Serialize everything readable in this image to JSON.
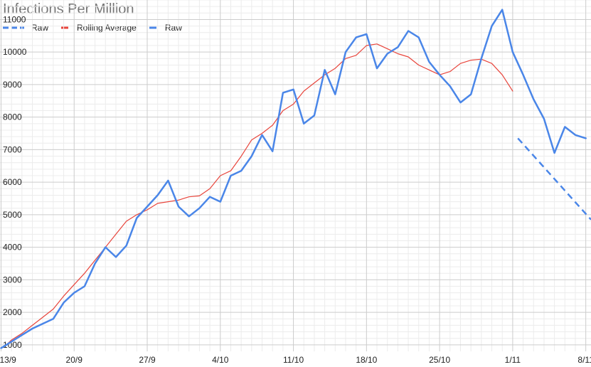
{
  "chart_data": {
    "type": "line",
    "title": "Infections Per Million",
    "xlabel": "",
    "ylabel": "",
    "x_ticks": [
      "13/9",
      "20/9",
      "27/9",
      "4/10",
      "11/10",
      "18/10",
      "25/10",
      "1/11",
      "8/11"
    ],
    "y_ticks": [
      1000,
      2000,
      3000,
      4000,
      5000,
      6000,
      7000,
      8000,
      9000,
      10000,
      11000
    ],
    "xlim": [
      12.9,
      69.5
    ],
    "ylim": [
      800,
      11600
    ],
    "grid": true,
    "legend_position": "top-left",
    "series": [
      {
        "name": "Raw",
        "style": "dashed",
        "color": "#4a86e8",
        "x": [
          62.5,
          69.5
        ],
        "y": [
          7350,
          4850
        ]
      },
      {
        "name": "Rolling Average",
        "style": "solid-thin",
        "color": "#e8453c",
        "x": [
          13.5,
          14,
          15,
          16,
          17,
          18,
          19,
          20,
          21,
          22,
          23,
          24,
          25,
          26,
          27,
          28,
          29,
          30,
          31,
          32,
          33,
          34,
          35,
          36,
          37,
          38,
          39,
          40,
          41,
          42,
          43,
          44,
          45,
          46,
          47,
          48,
          49,
          50,
          51,
          52,
          53,
          54,
          55,
          56,
          57,
          58,
          59,
          60,
          61,
          62
        ],
        "y": [
          1000,
          1150,
          1350,
          1600,
          1850,
          2100,
          2500,
          2850,
          3200,
          3600,
          4000,
          4400,
          4800,
          5000,
          5150,
          5350,
          5400,
          5450,
          5550,
          5580,
          5800,
          6200,
          6350,
          6800,
          7300,
          7500,
          7750,
          8200,
          8400,
          8800,
          9050,
          9300,
          9500,
          9800,
          9900,
          10200,
          10250,
          10100,
          9950,
          9850,
          9600,
          9450,
          9300,
          9400,
          9650,
          9750,
          9780,
          9650,
          9300,
          8800
        ]
      },
      {
        "name": "Raw",
        "style": "solid",
        "color": "#4a86e8",
        "x": [
          13,
          13.5,
          15,
          16,
          17,
          18,
          19,
          20,
          21,
          22,
          23,
          24,
          25,
          26,
          27,
          28,
          29,
          30,
          31,
          32,
          33,
          34,
          35,
          36,
          37,
          38,
          39,
          40,
          41,
          42,
          43,
          44,
          45,
          46,
          47,
          48,
          49,
          50,
          51,
          52,
          53,
          54,
          55,
          56,
          57,
          58,
          59,
          60,
          61,
          62,
          63,
          64,
          65,
          66,
          67,
          68,
          69
        ],
        "y": [
          900,
          1000,
          1300,
          1500,
          1650,
          1800,
          2300,
          2600,
          2800,
          3500,
          4000,
          3700,
          4050,
          4900,
          5250,
          5600,
          6050,
          5250,
          4950,
          5200,
          5550,
          5400,
          6200,
          6350,
          6800,
          7450,
          6950,
          8750,
          8850,
          7800,
          8050,
          9450,
          8700,
          10000,
          10450,
          10550,
          9500,
          9950,
          10150,
          10650,
          10450,
          9700,
          9300,
          8950,
          8450,
          8700,
          9800,
          10800,
          11300,
          10000,
          9300,
          8550,
          7950,
          6900,
          7700,
          7450,
          7350
        ]
      }
    ]
  }
}
